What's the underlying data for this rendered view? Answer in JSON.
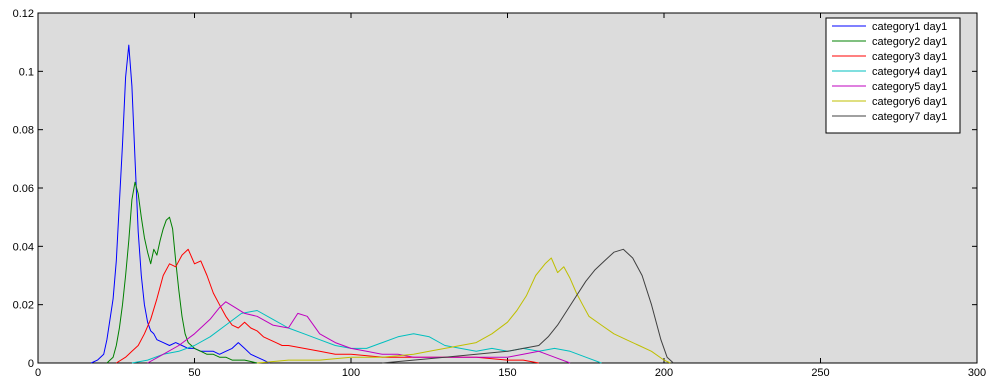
{
  "chart_data": {
    "type": "line",
    "xlim": [
      0,
      300
    ],
    "ylim": [
      0,
      0.12
    ],
    "x_ticks": [
      "0",
      "50",
      "100",
      "150",
      "200",
      "250",
      "300"
    ],
    "y_ticks": [
      "0",
      "0.02",
      "0.04",
      "0.06",
      "0.08",
      "0.1",
      "0.12"
    ],
    "grid": false,
    "background_color": "#dcdcdc",
    "legend_position": "top-right",
    "series": [
      {
        "name": "category1 day1",
        "color": "#0000ff",
        "x": [
          17,
          19,
          21,
          22,
          23,
          24,
          25,
          26,
          27,
          28,
          29,
          30,
          31,
          32,
          33,
          34,
          35,
          36,
          37,
          38,
          40,
          42,
          44,
          46,
          48,
          50,
          52,
          54,
          56,
          58,
          60,
          62,
          64,
          66,
          68,
          70,
          72,
          74
        ],
        "y": [
          0,
          0.001,
          0.003,
          0.008,
          0.015,
          0.022,
          0.035,
          0.055,
          0.075,
          0.098,
          0.109,
          0.095,
          0.07,
          0.045,
          0.03,
          0.02,
          0.014,
          0.011,
          0.01,
          0.008,
          0.007,
          0.006,
          0.007,
          0.006,
          0.005,
          0.005,
          0.004,
          0.004,
          0.004,
          0.003,
          0.004,
          0.005,
          0.007,
          0.005,
          0.003,
          0.002,
          0.001,
          0
        ]
      },
      {
        "name": "category2 day1",
        "color": "#008000",
        "x": [
          22,
          24,
          25,
          26,
          27,
          28,
          29,
          30,
          31,
          32,
          33,
          34,
          35,
          36,
          37,
          38,
          39,
          40,
          41,
          42,
          43,
          44,
          45,
          46,
          47,
          48,
          50,
          52,
          54,
          56,
          58,
          60,
          62,
          64,
          66,
          68,
          70
        ],
        "y": [
          0,
          0.002,
          0.006,
          0.012,
          0.02,
          0.03,
          0.042,
          0.056,
          0.062,
          0.058,
          0.05,
          0.043,
          0.038,
          0.034,
          0.039,
          0.037,
          0.042,
          0.046,
          0.049,
          0.05,
          0.046,
          0.035,
          0.025,
          0.016,
          0.01,
          0.007,
          0.005,
          0.004,
          0.003,
          0.003,
          0.002,
          0.002,
          0.001,
          0.001,
          0.001,
          0.0005,
          0
        ]
      },
      {
        "name": "category3 day1",
        "color": "#ff0000",
        "x": [
          25,
          28,
          30,
          32,
          34,
          36,
          38,
          40,
          42,
          44,
          46,
          48,
          50,
          52,
          54,
          56,
          58,
          60,
          62,
          64,
          66,
          68,
          70,
          72,
          74,
          76,
          78,
          80,
          85,
          90,
          95,
          100,
          110,
          120,
          130,
          140,
          150,
          155,
          160
        ],
        "y": [
          0,
          0.002,
          0.004,
          0.006,
          0.01,
          0.015,
          0.022,
          0.03,
          0.034,
          0.033,
          0.037,
          0.039,
          0.034,
          0.035,
          0.03,
          0.024,
          0.02,
          0.016,
          0.013,
          0.012,
          0.014,
          0.012,
          0.011,
          0.009,
          0.008,
          0.007,
          0.006,
          0.006,
          0.005,
          0.004,
          0.003,
          0.003,
          0.002,
          0.002,
          0.002,
          0.002,
          0.001,
          0.001,
          0
        ]
      },
      {
        "name": "category4 day1",
        "color": "#00bfbf",
        "x": [
          30,
          35,
          40,
          45,
          50,
          55,
          60,
          65,
          70,
          75,
          80,
          85,
          90,
          95,
          100,
          105,
          110,
          115,
          120,
          125,
          130,
          135,
          140,
          145,
          150,
          155,
          160,
          165,
          170,
          175,
          180
        ],
        "y": [
          0,
          0.001,
          0.003,
          0.004,
          0.006,
          0.009,
          0.013,
          0.017,
          0.018,
          0.015,
          0.012,
          0.01,
          0.008,
          0.006,
          0.005,
          0.005,
          0.007,
          0.009,
          0.01,
          0.009,
          0.006,
          0.005,
          0.004,
          0.005,
          0.004,
          0.005,
          0.004,
          0.005,
          0.004,
          0.002,
          0
        ]
      },
      {
        "name": "category5 day1",
        "color": "#bf00bf",
        "x": [
          35,
          40,
          45,
          50,
          55,
          58,
          60,
          63,
          66,
          70,
          75,
          80,
          83,
          86,
          90,
          95,
          100,
          105,
          110,
          115,
          120,
          130,
          140,
          150,
          155,
          160,
          165,
          170
        ],
        "y": [
          0,
          0.003,
          0.006,
          0.01,
          0.015,
          0.019,
          0.021,
          0.019,
          0.017,
          0.016,
          0.013,
          0.012,
          0.017,
          0.016,
          0.01,
          0.007,
          0.005,
          0.004,
          0.003,
          0.003,
          0.002,
          0.002,
          0.002,
          0.002,
          0.003,
          0.004,
          0.002,
          0
        ]
      },
      {
        "name": "category6 day1",
        "color": "#bfbf00",
        "x": [
          70,
          80,
          90,
          100,
          110,
          120,
          125,
          130,
          135,
          140,
          145,
          150,
          153,
          156,
          159,
          162,
          164,
          166,
          168,
          170,
          172,
          174,
          176,
          180,
          184,
          188,
          192,
          196,
          200,
          202
        ],
        "y": [
          0,
          0.001,
          0.001,
          0.002,
          0.002,
          0.003,
          0.004,
          0.005,
          0.006,
          0.007,
          0.01,
          0.014,
          0.018,
          0.023,
          0.03,
          0.034,
          0.036,
          0.031,
          0.033,
          0.029,
          0.024,
          0.02,
          0.016,
          0.013,
          0.01,
          0.008,
          0.006,
          0.004,
          0.001,
          0
        ]
      },
      {
        "name": "category7 day1",
        "color": "#404040",
        "x": [
          110,
          120,
          130,
          140,
          150,
          155,
          160,
          163,
          166,
          169,
          172,
          175,
          178,
          181,
          184,
          187,
          190,
          193,
          196,
          199,
          201,
          203
        ],
        "y": [
          0,
          0.001,
          0.002,
          0.003,
          0.004,
          0.005,
          0.006,
          0.009,
          0.013,
          0.018,
          0.023,
          0.028,
          0.032,
          0.035,
          0.038,
          0.039,
          0.036,
          0.03,
          0.02,
          0.008,
          0.002,
          0
        ]
      }
    ]
  }
}
